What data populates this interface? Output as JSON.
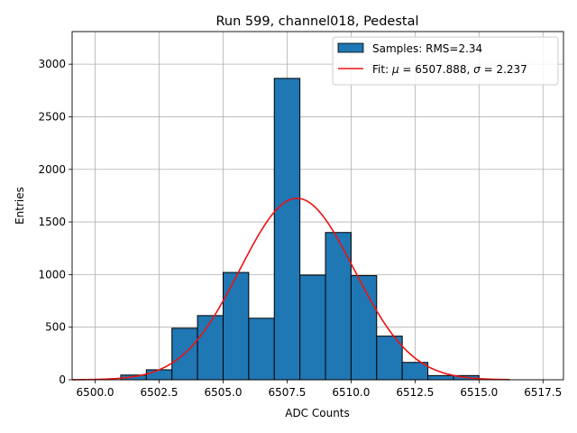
{
  "chart_data": {
    "type": "bar",
    "title": "Run 599, channel018, Pedestal",
    "xlabel": "ADC Counts",
    "ylabel": "Entries",
    "xlim": [
      6499.1,
      6518.3
    ],
    "ylim": [
      0,
      3310
    ],
    "grid": true,
    "legend_position": "top-right",
    "x_ticks": [
      6500.0,
      6502.5,
      6505.0,
      6507.5,
      6510.0,
      6512.5,
      6515.0,
      6517.5
    ],
    "x_tick_labels": [
      "6500.0",
      "6502.5",
      "6505.0",
      "6507.5",
      "6510.0",
      "6512.5",
      "6515.0",
      "6517.5"
    ],
    "y_ticks": [
      0,
      500,
      1000,
      1500,
      2000,
      2500,
      3000
    ],
    "y_tick_labels": [
      "0",
      "500",
      "1000",
      "1500",
      "2000",
      "2500",
      "3000"
    ],
    "histogram": {
      "name": "Samples: RMS=2.34",
      "color": "#1f77b4",
      "edge_color": "#000000",
      "bin_edges": [
        6501,
        6502,
        6503,
        6504,
        6505,
        6506,
        6507,
        6508,
        6509,
        6510,
        6511,
        6512,
        6513,
        6514,
        6515
      ],
      "counts": [
        45,
        95,
        490,
        610,
        1020,
        585,
        2865,
        995,
        1400,
        990,
        415,
        165,
        40,
        40
      ]
    },
    "fit": {
      "name_prefix": "Fit: ",
      "mu_symbol": "μ",
      "mu_text": " = 6507.888, ",
      "sigma_symbol": "σ",
      "sigma_text": " = 2.237",
      "color": "#ee1111",
      "mu": 6507.888,
      "sigma": 2.237,
      "amplitude": 1725,
      "x_range": [
        6499.1,
        6516.2
      ]
    }
  }
}
